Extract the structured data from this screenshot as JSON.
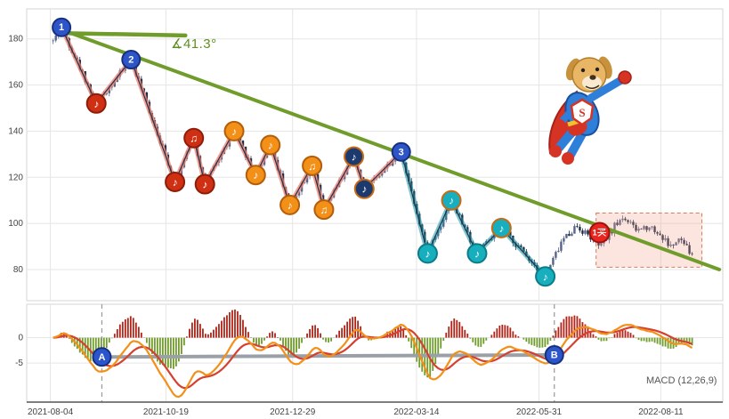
{
  "chart_data": {
    "type": "candlestick",
    "title": "",
    "x_axis": {
      "ticks": [
        {
          "f": 0.034,
          "label": "2021-08-04"
        },
        {
          "f": 0.2,
          "label": "2021-10-19"
        },
        {
          "f": 0.382,
          "label": "2021-12-29"
        },
        {
          "f": 0.56,
          "label": "2022-03-14"
        },
        {
          "f": 0.736,
          "label": "2022-05-31"
        },
        {
          "f": 0.911,
          "label": "2022-08-11"
        }
      ]
    },
    "price_axis": {
      "range": [
        66.5,
        193
      ],
      "ticks": [
        80,
        100,
        120,
        140,
        160,
        180
      ]
    },
    "candles": {
      "count": 240,
      "seed": 42,
      "noise": 1.5,
      "f_start": 0.038,
      "f_end": 0.956,
      "up_color": "#56648a",
      "down_color": "#1f2c47"
    },
    "price_path": [
      [
        0.038,
        179
      ],
      [
        0.05,
        185
      ],
      [
        0.1,
        152
      ],
      [
        0.15,
        171
      ],
      [
        0.213,
        118
      ],
      [
        0.24,
        137
      ],
      [
        0.256,
        117
      ],
      [
        0.298,
        140
      ],
      [
        0.329,
        121
      ],
      [
        0.35,
        134
      ],
      [
        0.378,
        108
      ],
      [
        0.41,
        125
      ],
      [
        0.427,
        106
      ],
      [
        0.47,
        129
      ],
      [
        0.485,
        115
      ],
      [
        0.538,
        131
      ],
      [
        0.576,
        87
      ],
      [
        0.61,
        110
      ],
      [
        0.647,
        87
      ],
      [
        0.682,
        98
      ],
      [
        0.745,
        77
      ],
      [
        0.77,
        93
      ],
      [
        0.79,
        99
      ],
      [
        0.806,
        95
      ],
      [
        0.825,
        90
      ],
      [
        0.845,
        99
      ],
      [
        0.857,
        103
      ],
      [
        0.875,
        97
      ],
      [
        0.895,
        99
      ],
      [
        0.91,
        95
      ],
      [
        0.925,
        90
      ],
      [
        0.94,
        93
      ],
      [
        0.956,
        86
      ]
    ],
    "zigzag": {
      "pivots": [
        {
          "f": 0.05,
          "price": 185,
          "label": "1",
          "type": "wave",
          "fill": "#2e55c8",
          "ring": "#16307e"
        },
        {
          "f": 0.1,
          "price": 152,
          "label": "♪",
          "type": "note",
          "fill": "#cf3014",
          "ring": "#8e1d08"
        },
        {
          "f": 0.15,
          "price": 171,
          "label": "2",
          "type": "wave",
          "fill": "#2e55c8",
          "ring": "#16307e"
        },
        {
          "f": 0.213,
          "price": 118,
          "label": "♪",
          "type": "note",
          "fill": "#cf3014",
          "ring": "#8e1d08"
        },
        {
          "f": 0.24,
          "price": 137,
          "label": "♫",
          "type": "note",
          "fill": "#cf3014",
          "ring": "#8e1d08"
        },
        {
          "f": 0.256,
          "price": 117,
          "label": "♪",
          "type": "note",
          "fill": "#cf3014",
          "ring": "#8e1d08"
        },
        {
          "f": 0.298,
          "price": 140,
          "label": "♪",
          "type": "note",
          "fill": "#f29018",
          "ring": "#b45d0a"
        },
        {
          "f": 0.329,
          "price": 121,
          "label": "♪",
          "type": "note",
          "fill": "#f29018",
          "ring": "#b45d0a"
        },
        {
          "f": 0.35,
          "price": 134,
          "label": "♪",
          "type": "note",
          "fill": "#f29018",
          "ring": "#b45d0a"
        },
        {
          "f": 0.378,
          "price": 108,
          "label": "♪",
          "type": "note",
          "fill": "#f29018",
          "ring": "#b45d0a"
        },
        {
          "f": 0.41,
          "price": 125,
          "label": "♫",
          "type": "note",
          "fill": "#f29018",
          "ring": "#b45d0a"
        },
        {
          "f": 0.427,
          "price": 106,
          "label": "♫",
          "type": "note",
          "fill": "#f29018",
          "ring": "#b45d0a"
        },
        {
          "f": 0.47,
          "price": 129,
          "label": "♪",
          "type": "note",
          "fill": "#1d3a6e",
          "ring": "#c86a14"
        },
        {
          "f": 0.485,
          "price": 115,
          "label": "♪",
          "type": "note",
          "fill": "#1d3a6e",
          "ring": "#c86a14"
        },
        {
          "f": 0.538,
          "price": 131,
          "label": "3",
          "type": "wave",
          "fill": "#2e55c8",
          "ring": "#16307e"
        },
        {
          "f": 0.576,
          "price": 87,
          "label": "♪",
          "type": "note",
          "fill": "#17aebe",
          "ring": "#0b7c88"
        },
        {
          "f": 0.61,
          "price": 110,
          "label": "♪",
          "type": "note",
          "fill": "#17aebe",
          "ring": "#c86a14"
        },
        {
          "f": 0.647,
          "price": 87,
          "label": "♪",
          "type": "note",
          "fill": "#17aebe",
          "ring": "#0b7c88"
        },
        {
          "f": 0.682,
          "price": 98,
          "label": "♪",
          "type": "note",
          "fill": "#17aebe",
          "ring": "#c86a14"
        },
        {
          "f": 0.745,
          "price": 77,
          "label": "♪",
          "type": "note",
          "fill": "#17aebe",
          "ring": "#0b7c88"
        }
      ],
      "salmon_segment": {
        "from": 0,
        "to": 14,
        "color": "rgba(238,130,110,0.75)",
        "width": 5
      },
      "teal_segment": {
        "from": 14,
        "to": 19,
        "color": "rgba(23,150,160,0.55)",
        "width": 5.5
      },
      "core_line_color": "#22304d"
    },
    "trendlines": [
      {
        "name": "descending-trendline",
        "f1": 0.05,
        "p1": 184,
        "f2": 0.995,
        "p2": 80,
        "color": "#6f9c2a",
        "width": 4
      },
      {
        "name": "horizontal-line",
        "f1": 0.05,
        "p1": 182.5,
        "f2": 0.228,
        "p2": 181.5,
        "color": "#6f9c2a",
        "width": 4.5
      }
    ],
    "annotations": {
      "angle_label": {
        "text": "∡41.3°",
        "color": "#5f8f1f"
      },
      "buy_marker": {
        "f": 0.823,
        "price": 96,
        "label": "1买",
        "fill": "#e8251e",
        "ring": "#9e120d"
      },
      "highlight_box": {
        "f1": 0.818,
        "f2": 0.97,
        "p1": 81,
        "p2": 104.5,
        "fill": "rgba(246,160,138,0.28)",
        "stroke": "#dd7a58"
      }
    },
    "macd": {
      "label": "MACD (12,26,9)",
      "params": [
        12,
        26,
        9
      ],
      "ticks": [
        0,
        -5
      ],
      "hist_up_color": "#b02418",
      "hist_down_color": "#6f9c2a",
      "dif_color": "#f2901a",
      "dea_color": "#d6402e",
      "trade_line": {
        "f1": 0.108,
        "v1": -3.8,
        "f2": 0.758,
        "v2": -3.4,
        "color": "#9aa0a8",
        "width": 4
      },
      "markers": [
        {
          "f": 0.108,
          "v": -3.8,
          "label": "A",
          "fill": "#2b55cc",
          "ring": "#16307e"
        },
        {
          "f": 0.758,
          "v": -3.4,
          "label": "B",
          "fill": "#2b55cc",
          "ring": "#16307e"
        }
      ]
    }
  }
}
